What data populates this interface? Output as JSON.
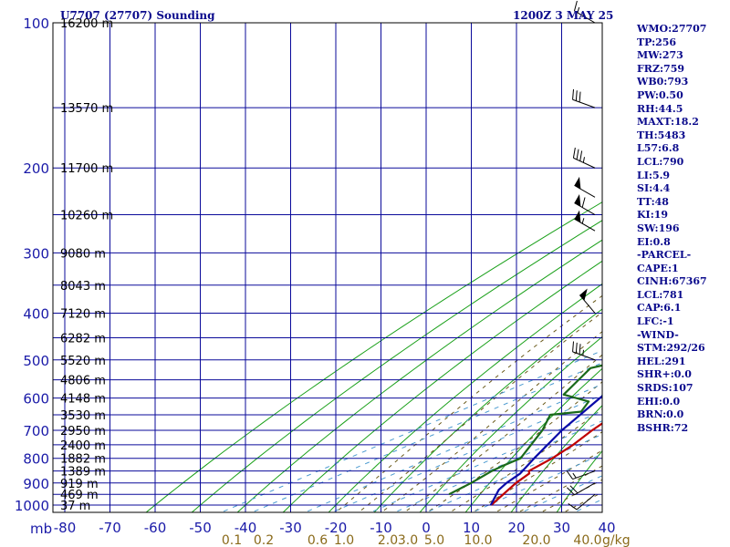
{
  "header": {
    "station": "U7707 (27707) Sounding",
    "time": "1200Z  3 MAY 25"
  },
  "indices": [
    "WMO:27707",
    "TP:256",
    "MW:273",
    "FRZ:759",
    "WB0:793",
    "PW:0.50",
    "RH:44.5",
    "MAXT:18.2",
    "TH:5483",
    "L57:6.8",
    "LCL:790",
    "LI:5.9",
    "SI:4.4",
    "TT:48",
    "KI:19",
    "SW:196",
    "EI:0.8",
    "-PARCEL-",
    "CAPE:1",
    "CINH:67367",
    "LCL:781",
    "CAP:6.1",
    "LFC:-1",
    "-WIND-",
    "STM:292/26",
    "HEL:291",
    "SHR+:0.0",
    "SRDS:107",
    "EHI:0.0",
    "BRN:0.0",
    "BSHR:72"
  ],
  "axes": {
    "pressure_unit": "mb",
    "mixing_ratio_unit": "g/kg",
    "pressure_levels": [
      100,
      150,
      200,
      250,
      300,
      350,
      400,
      450,
      500,
      550,
      600,
      650,
      700,
      750,
      800,
      850,
      900,
      950,
      1000
    ],
    "pressure_labels": [
      {
        "p": 100,
        "text": "100"
      },
      {
        "p": 200,
        "text": "200"
      },
      {
        "p": 300,
        "text": "300"
      },
      {
        "p": 400,
        "text": "400"
      },
      {
        "p": 500,
        "text": "500"
      },
      {
        "p": 600,
        "text": "600"
      },
      {
        "p": 700,
        "text": "700"
      },
      {
        "p": 800,
        "text": "800"
      },
      {
        "p": 900,
        "text": "900"
      },
      {
        "p": 1000,
        "text": "1000"
      }
    ],
    "height_labels": [
      {
        "p": 100,
        "text": "16200 m"
      },
      {
        "p": 150,
        "text": "13570 m"
      },
      {
        "p": 200,
        "text": "11700 m"
      },
      {
        "p": 250,
        "text": "10260 m"
      },
      {
        "p": 300,
        "text": "9080 m"
      },
      {
        "p": 350,
        "text": "8043 m"
      },
      {
        "p": 400,
        "text": "7120 m"
      },
      {
        "p": 450,
        "text": "6282 m"
      },
      {
        "p": 500,
        "text": "5520 m"
      },
      {
        "p": 550,
        "text": "4806 m"
      },
      {
        "p": 600,
        "text": "4148 m"
      },
      {
        "p": 650,
        "text": "3530 m"
      },
      {
        "p": 700,
        "text": "2950 m"
      },
      {
        "p": 750,
        "text": "2400 m"
      },
      {
        "p": 800,
        "text": "1882 m"
      },
      {
        "p": 850,
        "text": "1389 m"
      },
      {
        "p": 900,
        "text": "919 m"
      },
      {
        "p": 950,
        "text": "469 m"
      },
      {
        "p": 1000,
        "text": "37 m"
      }
    ],
    "temperature_ticks": [
      -80,
      -70,
      -60,
      -50,
      -40,
      -30,
      -20,
      -10,
      0,
      10,
      20,
      30,
      40
    ],
    "temperature_tick_labels": [
      "-80",
      "-70",
      "-60",
      "-50",
      "-40",
      "-30",
      "-20",
      "-10",
      "0",
      "10",
      "20",
      "30",
      "40"
    ],
    "mixing_ratio_labels": [
      "0.1",
      "0.2",
      "0.6",
      "1.0",
      "2.0",
      "3.0",
      "5.0",
      "10.0",
      "20.0",
      "40.0"
    ]
  },
  "chart_data": {
    "type": "line",
    "title": "U7707 (27707) Sounding",
    "subtitle": "1200Z  3 MAY 25",
    "xlabel": "",
    "ylabel": "mb",
    "xlim": [
      -80,
      40
    ],
    "ylim": [
      1000,
      100
    ],
    "y_scale": "log",
    "series": [
      {
        "name": "temperature",
        "color": "#c00000",
        "p": [
          1000,
          900,
          860,
          850,
          800,
          750,
          700,
          650,
          600,
          560,
          520,
          500,
          450,
          400,
          350,
          300,
          270,
          250,
          245,
          230,
          220,
          200,
          180,
          160,
          150,
          100
        ],
        "t": [
          14.4,
          7.4,
          5.0,
          3.5,
          1.5,
          -1.5,
          -5.5,
          -9.2,
          -13.0,
          -16.5,
          -19.8,
          -21.5,
          -27.0,
          -32.0,
          -38.0,
          -44.5,
          -48.5,
          -49.2,
          -47.5,
          -49.0,
          -50.5,
          -51.5,
          -51.0,
          -49.8,
          -50.3,
          -52.3
        ]
      },
      {
        "name": "dewpoint",
        "color": "#1a6a1a",
        "p": [
          950,
          900,
          850,
          830,
          800,
          700,
          650,
          640,
          610,
          590,
          520,
          500,
          460,
          400,
          350,
          300,
          270,
          250,
          230,
          200,
          150,
          100
        ],
        "t": [
          -1.0,
          -2.5,
          -4.7,
          -5.2,
          -5.5,
          -16.5,
          -23.5,
          -18.5,
          -22.5,
          -32.0,
          -41.0,
          -37.8,
          -37.0,
          -48.0,
          -59.5,
          -65.5,
          -68.5,
          -68.0,
          -70.0,
          -73.0,
          -77.0,
          -81.0
        ]
      },
      {
        "name": "parcel",
        "color": "#0a0aa8",
        "p": [
          1000,
          930,
          900,
          860,
          800,
          700,
          600,
          500,
          400,
          300,
          250,
          200
        ],
        "t": [
          14.3,
          7.5,
          5.3,
          3.0,
          -2.5,
          -12.2,
          -22.0,
          -33.0,
          -45.5,
          -61.5,
          -71.5,
          -82.0
        ]
      }
    ],
    "wind_barbs": [
      {
        "p": 100,
        "dir": 300,
        "spd": 15
      },
      {
        "p": 150,
        "dir": 290,
        "spd": 30
      },
      {
        "p": 200,
        "dir": 295,
        "spd": 35
      },
      {
        "p": 230,
        "dir": 300,
        "spd": 50
      },
      {
        "p": 250,
        "dir": 300,
        "spd": 60
      },
      {
        "p": 270,
        "dir": 300,
        "spd": 55
      },
      {
        "p": 400,
        "dir": 320,
        "spd": 50
      },
      {
        "p": 500,
        "dir": 290,
        "spd": 35
      },
      {
        "p": 850,
        "dir": 250,
        "spd": 15
      },
      {
        "p": 900,
        "dir": 240,
        "spd": 20
      },
      {
        "p": 950,
        "dir": 230,
        "spd": 10
      }
    ]
  },
  "colors": {
    "frame": "#000000",
    "isobars": "#0a0a9a",
    "isotherms": "#0a0a9a",
    "dry_adiabats": "#1aa01a",
    "moist_adiabats": "#6a5a1a",
    "mixing_ratio": "#4a9ad0",
    "text_blue": "#0a0a8c"
  }
}
